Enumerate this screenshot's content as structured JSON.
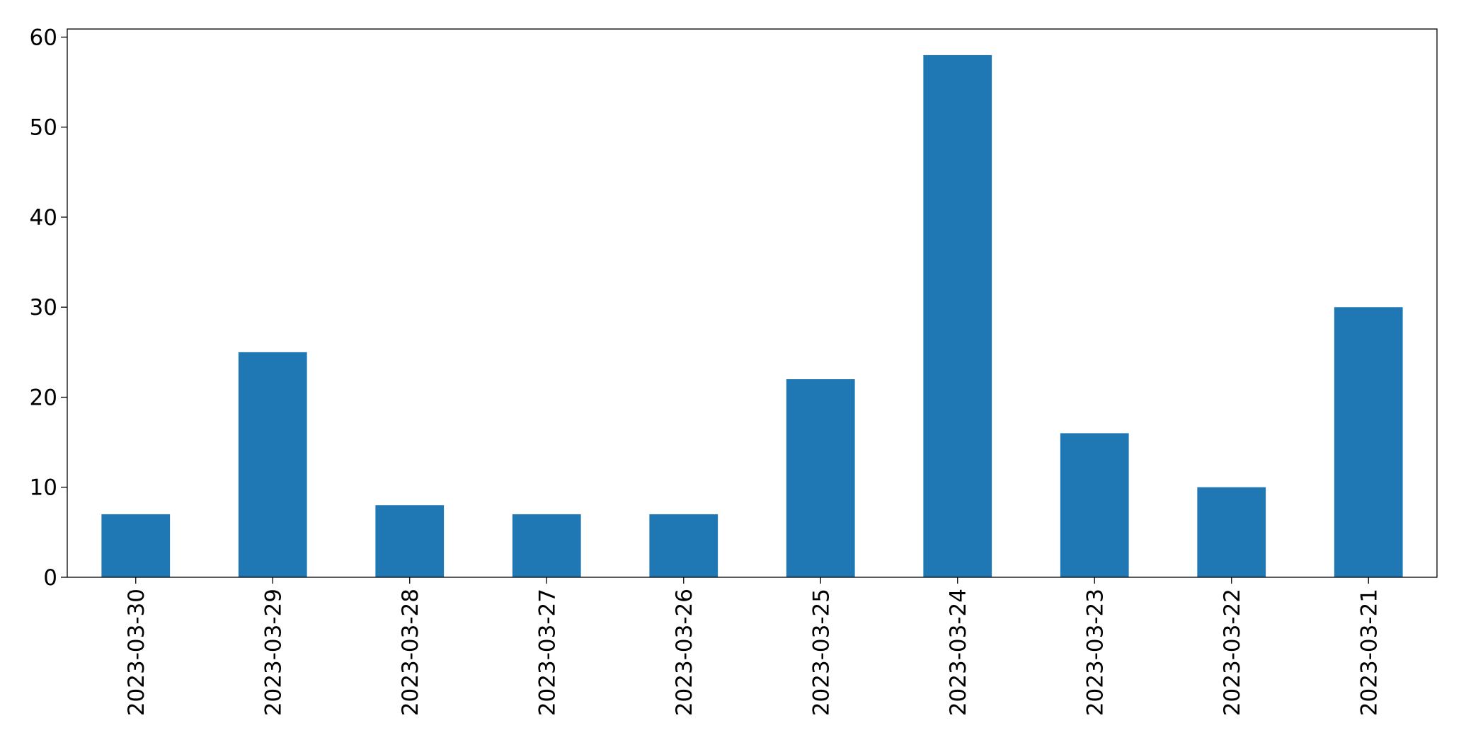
{
  "chart_data": {
    "type": "bar",
    "categories": [
      "2023-03-30",
      "2023-03-29",
      "2023-03-28",
      "2023-03-27",
      "2023-03-26",
      "2023-03-25",
      "2023-03-24",
      "2023-03-23",
      "2023-03-22",
      "2023-03-21"
    ],
    "values": [
      7,
      25,
      8,
      7,
      7,
      22,
      58,
      16,
      10,
      30
    ],
    "color": "#1f77b4",
    "ylim": [
      0,
      60.9
    ],
    "yticks": [
      0,
      10,
      20,
      30,
      40,
      50,
      60
    ],
    "grid": false
  }
}
